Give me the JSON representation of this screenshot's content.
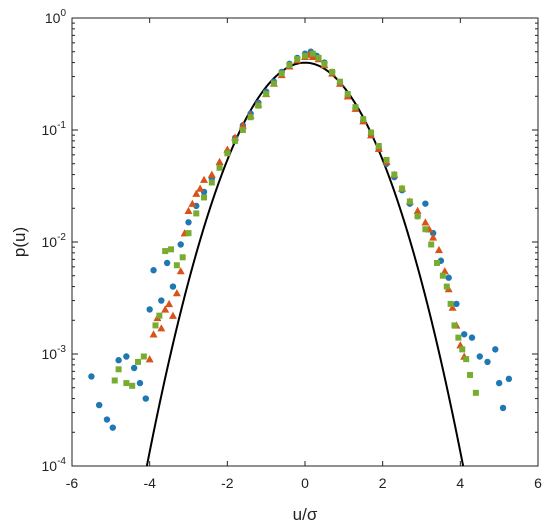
{
  "chart_data": {
    "type": "scatter",
    "title": "",
    "xlabel": "u/σ",
    "ylabel": "p(u)",
    "xlim": [
      -6,
      6
    ],
    "ylim": [
      0.0001,
      1
    ],
    "yscale": "log",
    "grid": false,
    "legend": "none",
    "xticks": [
      {
        "value": -6,
        "label": "-6"
      },
      {
        "value": -4,
        "label": "-4"
      },
      {
        "value": -2,
        "label": "-2"
      },
      {
        "value": 0,
        "label": "0"
      },
      {
        "value": 2,
        "label": "2"
      },
      {
        "value": 4,
        "label": "4"
      },
      {
        "value": 6,
        "label": "6"
      }
    ],
    "yticks": [
      {
        "value": 0.0001,
        "mantissa": "10",
        "exponent": "-4"
      },
      {
        "value": 0.001,
        "mantissa": "10",
        "exponent": "-3"
      },
      {
        "value": 0.01,
        "mantissa": "10",
        "exponent": "-2"
      },
      {
        "value": 0.1,
        "mantissa": "10",
        "exponent": "-1"
      },
      {
        "value": 1,
        "mantissa": "10",
        "exponent": "0"
      }
    ],
    "series": [
      {
        "marker": "circle",
        "color": "#1f77b4",
        "points": [
          [
            -5.5,
            0.00063
          ],
          [
            -5.3,
            0.00035
          ],
          [
            -5.1,
            0.00026
          ],
          [
            -4.95,
            0.00022
          ],
          [
            -4.8,
            0.00088
          ],
          [
            -4.6,
            0.00095
          ],
          [
            -4.4,
            0.00075
          ],
          [
            -4.25,
            0.00055
          ],
          [
            -4.1,
            0.0004
          ],
          [
            -4.0,
            0.0025
          ],
          [
            -3.9,
            0.0056
          ],
          [
            -3.7,
            0.003
          ],
          [
            -3.55,
            0.0065
          ],
          [
            -3.4,
            0.004
          ],
          [
            -3.2,
            0.0095
          ],
          [
            -3.0,
            0.015
          ],
          [
            -2.8,
            0.021
          ],
          [
            -2.6,
            0.028
          ],
          [
            -2.4,
            0.037
          ],
          [
            -2.2,
            0.049
          ],
          [
            -2.0,
            0.064
          ],
          [
            -1.8,
            0.085
          ],
          [
            -1.6,
            0.11
          ],
          [
            -1.4,
            0.14
          ],
          [
            -1.2,
            0.175
          ],
          [
            -1.0,
            0.22
          ],
          [
            -0.8,
            0.27
          ],
          [
            -0.6,
            0.33
          ],
          [
            -0.4,
            0.39
          ],
          [
            -0.2,
            0.44
          ],
          [
            0.0,
            0.48
          ],
          [
            0.15,
            0.5
          ],
          [
            0.3,
            0.46
          ],
          [
            0.5,
            0.4
          ],
          [
            0.7,
            0.33
          ],
          [
            0.9,
            0.26
          ],
          [
            1.1,
            0.2
          ],
          [
            1.3,
            0.155
          ],
          [
            1.5,
            0.12
          ],
          [
            1.7,
            0.09
          ],
          [
            1.9,
            0.068
          ],
          [
            2.1,
            0.05
          ],
          [
            2.3,
            0.038
          ],
          [
            2.5,
            0.029
          ],
          [
            2.7,
            0.022
          ],
          [
            2.9,
            0.017
          ],
          [
            3.1,
            0.022
          ],
          [
            3.3,
            0.012
          ],
          [
            3.5,
            0.0068
          ],
          [
            3.7,
            0.0048
          ],
          [
            3.9,
            0.0028
          ],
          [
            4.1,
            0.0015
          ],
          [
            4.3,
            0.0014
          ],
          [
            4.5,
            0.00095
          ],
          [
            4.7,
            0.00085
          ],
          [
            4.9,
            0.0011
          ],
          [
            5.0,
            0.00055
          ],
          [
            5.1,
            0.00033
          ],
          [
            5.25,
            0.0006
          ]
        ]
      },
      {
        "marker": "triangle",
        "color": "#d95319",
        "points": [
          [
            -4.0,
            0.0009
          ],
          [
            -3.9,
            0.0015
          ],
          [
            -3.8,
            0.0021
          ],
          [
            -3.7,
            0.0017
          ],
          [
            -3.6,
            0.0025
          ],
          [
            -3.5,
            0.0028
          ],
          [
            -3.4,
            0.0022
          ],
          [
            -3.3,
            0.0035
          ],
          [
            -3.2,
            0.0055
          ],
          [
            -3.1,
            0.012
          ],
          [
            -3.0,
            0.019
          ],
          [
            -2.9,
            0.022
          ],
          [
            -2.8,
            0.027
          ],
          [
            -2.7,
            0.03
          ],
          [
            -2.6,
            0.036
          ],
          [
            -2.4,
            0.04
          ],
          [
            -2.2,
            0.052
          ],
          [
            -2.0,
            0.067
          ],
          [
            -1.8,
            0.086
          ],
          [
            -1.6,
            0.11
          ],
          [
            -1.4,
            0.135
          ],
          [
            -1.2,
            0.17
          ],
          [
            -1.0,
            0.21
          ],
          [
            -0.8,
            0.26
          ],
          [
            -0.6,
            0.31
          ],
          [
            -0.4,
            0.37
          ],
          [
            -0.2,
            0.42
          ],
          [
            0.0,
            0.45
          ],
          [
            0.1,
            0.47
          ],
          [
            0.2,
            0.45
          ],
          [
            0.35,
            0.43
          ],
          [
            0.5,
            0.38
          ],
          [
            0.7,
            0.32
          ],
          [
            0.9,
            0.26
          ],
          [
            1.1,
            0.2
          ],
          [
            1.3,
            0.155
          ],
          [
            1.5,
            0.12
          ],
          [
            1.7,
            0.09
          ],
          [
            1.9,
            0.068
          ],
          [
            2.1,
            0.052
          ],
          [
            2.3,
            0.04
          ],
          [
            2.5,
            0.03
          ],
          [
            2.7,
            0.023
          ],
          [
            2.9,
            0.019
          ],
          [
            3.1,
            0.015
          ],
          [
            3.2,
            0.013
          ],
          [
            3.3,
            0.011
          ],
          [
            3.45,
            0.0085
          ],
          [
            3.6,
            0.0055
          ],
          [
            3.7,
            0.0038
          ],
          [
            3.8,
            0.0026
          ],
          [
            3.9,
            0.0018
          ],
          [
            4.0,
            0.0012
          ],
          [
            4.1,
            0.00095
          ]
        ]
      },
      {
        "marker": "square",
        "color": "#77ac30",
        "points": [
          [
            -4.9,
            0.00058
          ],
          [
            -4.8,
            0.00073
          ],
          [
            -4.6,
            0.00055
          ],
          [
            -4.45,
            0.00052
          ],
          [
            -4.3,
            0.00085
          ],
          [
            -4.15,
            0.00095
          ],
          [
            -3.85,
            0.0018
          ],
          [
            -3.75,
            0.0022
          ],
          [
            -3.6,
            0.0083
          ],
          [
            -3.45,
            0.0086
          ],
          [
            -3.3,
            0.0062
          ],
          [
            -3.15,
            0.0073
          ],
          [
            -3.0,
            0.012
          ],
          [
            -2.8,
            0.018
          ],
          [
            -2.6,
            0.025
          ],
          [
            -2.4,
            0.034
          ],
          [
            -2.2,
            0.046
          ],
          [
            -2.0,
            0.062
          ],
          [
            -1.8,
            0.08
          ],
          [
            -1.6,
            0.1
          ],
          [
            -1.4,
            0.13
          ],
          [
            -1.2,
            0.165
          ],
          [
            -1.0,
            0.21
          ],
          [
            -0.8,
            0.26
          ],
          [
            -0.6,
            0.32
          ],
          [
            -0.4,
            0.38
          ],
          [
            -0.2,
            0.43
          ],
          [
            0.0,
            0.46
          ],
          [
            0.2,
            0.48
          ],
          [
            0.35,
            0.44
          ],
          [
            0.5,
            0.39
          ],
          [
            0.7,
            0.33
          ],
          [
            0.9,
            0.27
          ],
          [
            1.1,
            0.21
          ],
          [
            1.3,
            0.16
          ],
          [
            1.5,
            0.125
          ],
          [
            1.7,
            0.095
          ],
          [
            1.9,
            0.072
          ],
          [
            2.1,
            0.054
          ],
          [
            2.3,
            0.04
          ],
          [
            2.5,
            0.03
          ],
          [
            2.7,
            0.023
          ],
          [
            2.9,
            0.017
          ],
          [
            3.1,
            0.013
          ],
          [
            3.25,
            0.0095
          ],
          [
            3.4,
            0.0065
          ],
          [
            3.55,
            0.005
          ],
          [
            3.65,
            0.004
          ],
          [
            3.75,
            0.0028
          ],
          [
            3.85,
            0.0018
          ],
          [
            3.95,
            0.0014
          ],
          [
            4.05,
            0.0011
          ],
          [
            4.15,
            0.0009
          ],
          [
            4.25,
            0.00065
          ],
          [
            4.4,
            0.00045
          ]
        ]
      }
    ],
    "curve": {
      "label": "",
      "color": "#000000",
      "function": "gaussian",
      "mean": 0,
      "std": 1
    }
  }
}
